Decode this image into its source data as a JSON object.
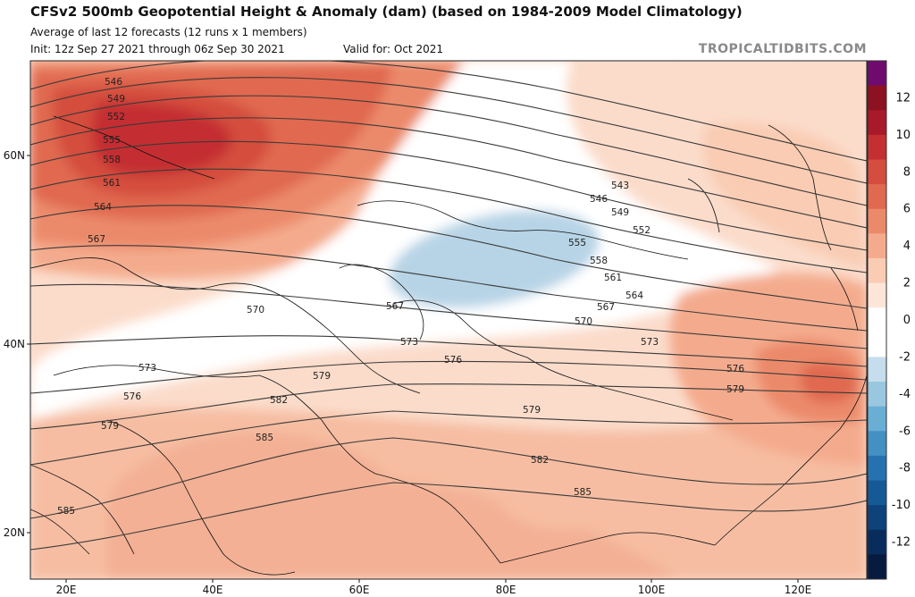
{
  "header": {
    "title": "CFSv2 500mb Geopotential Height & Anomaly (dam) (based on 1984-2009 Model Climatology)",
    "subtitle": "Average of last 12 forecasts (12 runs x 1 members)",
    "init": "Init: 12z Sep 27 2021 through 06z Sep 30 2021",
    "valid": "Valid for: Oct 2021",
    "brand": "TROPICALTIDBITS.COM"
  },
  "map": {
    "lon_ticks": [
      "20E",
      "40E",
      "60E",
      "80E",
      "100E",
      "120E"
    ],
    "lat_ticks": [
      "60N",
      "40N",
      "20N"
    ],
    "contour_labels": [
      "546",
      "549",
      "552",
      "555",
      "558",
      "561",
      "564",
      "567",
      "570",
      "573",
      "576",
      "579",
      "582",
      "585",
      "543"
    ]
  },
  "colorbar": {
    "labels": [
      "12",
      "10",
      "8",
      "6",
      "4",
      "2",
      "0",
      "-2",
      "-4",
      "-6",
      "-8",
      "-10",
      "-12"
    ],
    "colors": [
      "#6f0b6f",
      "#8c1121",
      "#a8192a",
      "#c42f33",
      "#d44d3e",
      "#e0694f",
      "#eb8a6b",
      "#f4ab8d",
      "#f9ccb3",
      "#fde6d8",
      "#ffffff",
      "#ffffff",
      "#c5ddec",
      "#9ac7e0",
      "#6aaed6",
      "#4390c3",
      "#2672b0",
      "#155a96",
      "#0d427a",
      "#082c5c",
      "#071b40"
    ]
  }
}
